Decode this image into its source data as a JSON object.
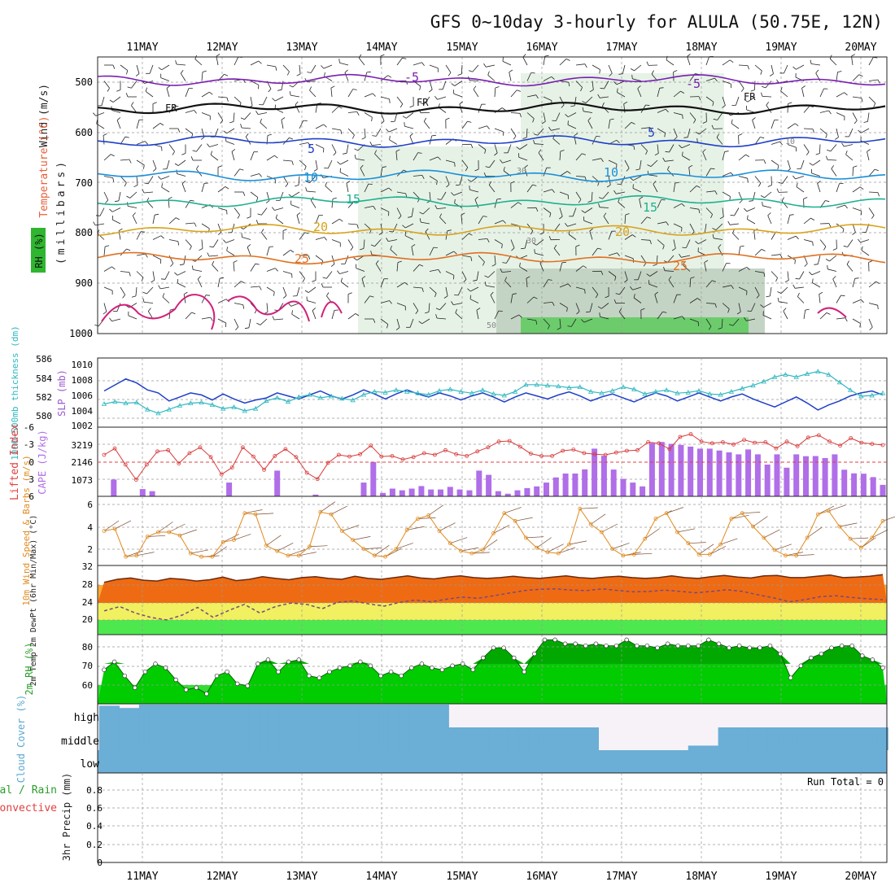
{
  "title": "GFS 0~10day 3-hourly for ALULA (50.75E, 12N)",
  "date_labels": [
    "11MAY",
    "12MAY",
    "13MAY",
    "14MAY",
    "15MAY",
    "16MAY",
    "17MAY",
    "18MAY",
    "19MAY",
    "20MAY"
  ],
  "colors": {
    "temp_label": "#e8603c",
    "wind_label": "#222222",
    "rh_label": "#2a9d2a",
    "mb_label": "#222222",
    "thickness_label": "#30b8c0",
    "slp_label": "#9b59d0",
    "li_label": "#e04040",
    "cape_label": "#b06ee8",
    "wind10_label": "#e08a1e",
    "cloud_label": "#5aa8d0",
    "precip_total": "#2a9d2a",
    "precip_conv": "#e04040",
    "blue_line": "#1f3fc8",
    "cyan_line": "#30b8c0",
    "cape_bar": "#b06ee8",
    "li_line": "#d83a3a",
    "orange_line": "#e08a1e",
    "rh_fill": "#22cc22",
    "cloud_fill": "#6baed6"
  },
  "panels": {
    "upper_air": {
      "ylabel_wind": "Wind (m/s)",
      "ylabel_temp": "Temperature (°C)",
      "ylabel_mb": "(millibars)",
      "ylabel_rh": "RH (%)",
      "y_ticks": [
        "500",
        "600",
        "700",
        "800",
        "900",
        "1000"
      ],
      "isotherm_labels": [
        "-5",
        "FR",
        "5",
        "10",
        "15",
        "20",
        "25"
      ],
      "rh_labels": [
        "30",
        "50",
        "10"
      ]
    },
    "slp": {
      "ylabel_left": "1000~500mb thickness (dm)",
      "ylabel_right": "SLP (mb)",
      "left_ticks": [
        "586",
        "584",
        "582",
        "580"
      ],
      "right_ticks": [
        "1010",
        "1008",
        "1006",
        "1004",
        "1002"
      ]
    },
    "cape": {
      "ylabel_left": "Lifted Index",
      "ylabel_right": "CAPE (J/kg)",
      "left_ticks": [
        "-6",
        "-3",
        "0",
        "3",
        "6"
      ],
      "right_ticks": [
        "3219",
        "2146",
        "1073"
      ]
    },
    "wind10": {
      "ylabel": "10m Wind Speed & Barbs (m/s)",
      "ticks": [
        "6",
        "4",
        "2"
      ]
    },
    "temp2m": {
      "ylabel": "2m Temp 2m DewPt (6hr Min/Max) (°C)",
      "ticks": [
        "32",
        "28",
        "24",
        "20"
      ]
    },
    "rh2m": {
      "ylabel": "2m RH (%)",
      "ticks": [
        "80",
        "70",
        "60"
      ]
    },
    "cloud": {
      "ylabel": "Cloud Cover (%)",
      "labels": [
        "high",
        "middle",
        "low"
      ]
    },
    "precip": {
      "ylabel": "3hr Precip (mm)",
      "legend_total": "Total / Rain",
      "legend_conv": "Convective",
      "run_total": "Run Total = 0",
      "ticks": [
        "0.8",
        "0.6",
        "0.4",
        "0.2",
        "0"
      ]
    }
  },
  "chart_data": {
    "type": "line",
    "x_days": [
      "11MAY",
      "12MAY",
      "13MAY",
      "14MAY",
      "15MAY",
      "16MAY",
      "17MAY",
      "18MAY",
      "19MAY",
      "20MAY"
    ],
    "isotherm_levels_mb": {
      "-5": 496,
      "FR": 552,
      "5": 618,
      "10": 686,
      "15": 737,
      "20": 794,
      "25": 850
    },
    "thickness_dm": [
      582.8,
      583.4,
      584.0,
      583.6,
      582.9,
      582.6,
      581.8,
      582.2,
      582.6,
      582.4,
      581.9,
      582.5,
      582.0,
      581.6,
      581.9,
      582.1,
      582.6,
      582.3,
      582.0,
      582.4,
      582.8,
      582.3,
      582.0,
      582.4,
      582.9,
      582.5,
      582.0,
      582.5,
      582.9,
      582.5,
      582.2,
      582.6,
      582.3,
      581.9,
      582.3,
      582.6,
      582.2,
      581.7,
      582.2,
      582.6,
      582.3,
      582.0,
      582.4,
      582.7,
      582.3,
      581.8,
      582.2,
      582.5,
      582.1,
      581.7,
      582.2,
      582.6,
      582.3,
      581.8,
      582.2,
      582.6,
      582.2,
      581.8,
      582.2,
      582.5,
      582.0,
      581.6,
      581.2,
      581.7,
      582.2,
      581.6,
      580.9,
      581.4,
      581.8,
      582.3,
      582.6,
      582.8,
      582.4
    ],
    "slp_mb": [
      1005.0,
      1005.3,
      1005.1,
      1005.2,
      1004.3,
      1003.8,
      1004.3,
      1004.8,
      1005.1,
      1005.2,
      1004.9,
      1004.4,
      1004.6,
      1004.1,
      1004.4,
      1005.4,
      1005.8,
      1005.3,
      1005.9,
      1006.2,
      1005.8,
      1006.0,
      1005.7,
      1005.5,
      1006.2,
      1006.6,
      1006.5,
      1006.8,
      1006.6,
      1006.4,
      1006.2,
      1006.7,
      1006.9,
      1006.6,
      1006.4,
      1006.8,
      1006.3,
      1006.1,
      1006.6,
      1007.5,
      1007.5,
      1007.4,
      1007.3,
      1007.1,
      1007.2,
      1006.6,
      1006.4,
      1006.7,
      1007.2,
      1006.9,
      1006.3,
      1006.6,
      1006.8,
      1006.4,
      1006.5,
      1006.7,
      1006.3,
      1006.2,
      1006.6,
      1007.0,
      1007.4,
      1007.9,
      1008.5,
      1008.8,
      1008.5,
      1008.9,
      1009.2,
      1008.8,
      1007.8,
      1006.8,
      1006.0,
      1006.1,
      1006.4
    ],
    "cape_jkg": [
      0,
      980,
      0,
      0,
      420,
      300,
      0,
      0,
      0,
      0,
      0,
      0,
      0,
      800,
      0,
      0,
      0,
      0,
      1500,
      0,
      0,
      0,
      100,
      0,
      0,
      0,
      0,
      800,
      2000,
      200,
      450,
      350,
      450,
      600,
      400,
      400,
      550,
      400,
      350,
      1500,
      1250,
      300,
      150,
      350,
      480,
      580,
      800,
      1100,
      1330,
      1330,
      1570,
      2780,
      2360,
      1560,
      1020,
      800,
      580,
      3100,
      3170,
      3060,
      3000,
      2900,
      2780,
      2780,
      2670,
      2560,
      2450,
      2730,
      2450,
      1850,
      2450,
      1670,
      2450,
      2340,
      2350,
      2230,
      2450,
      1550,
      1340,
      1320,
      1120,
      670
    ],
    "lifted_index": [
      -1.2,
      -2.3,
      0.5,
      3.1,
      0.5,
      -1.8,
      -2.0,
      0.3,
      -1.5,
      -2.5,
      -0.8,
      2.2,
      1.0,
      -2.5,
      -0.9,
      1.4,
      -1.0,
      -2.2,
      -0.8,
      1.9,
      3.0,
      0.2,
      -1.2,
      -0.9,
      -1.3,
      -2.8,
      -0.9,
      -1.0,
      -0.4,
      -0.8,
      -1.5,
      -1.2,
      -2.0,
      -1.3,
      -1.0,
      -1.8,
      -2.5,
      -3.5,
      -3.6,
      -2.6,
      -1.4,
      -1.0,
      -1.0,
      -1.9,
      -2.1,
      -1.5,
      -1.3,
      -1.2,
      -1.6,
      -1.9,
      -2.0,
      -3.4,
      -3.2,
      -2.2,
      -4.3,
      -4.8,
      -3.5,
      -3.2,
      -3.4,
      -3.0,
      -3.8,
      -3.3,
      -3.4,
      -2.3,
      -3.5,
      -2.7,
      -4.2,
      -4.6,
      -3.5,
      -2.8,
      -4.1,
      -3.3,
      -3.1,
      -2.9
    ],
    "wind10m_ms": [
      3.6,
      3.8,
      1.3,
      1.4,
      3.1,
      3.5,
      3.5,
      3.2,
      1.6,
      1.3,
      1.3,
      2.6,
      2.8,
      5.2,
      5.1,
      2.3,
      1.8,
      1.4,
      1.4,
      2.2,
      5.3,
      5.1,
      3.6,
      2.8,
      2.0,
      1.4,
      1.3,
      2.0,
      3.7,
      4.7,
      5.0,
      3.6,
      2.5,
      1.8,
      1.6,
      1.9,
      3.4,
      5.2,
      4.5,
      3.0,
      2.1,
      1.7,
      1.6,
      2.4,
      5.6,
      4.2,
      3.5,
      2.0,
      1.4,
      1.5,
      2.9,
      4.7,
      5.2,
      3.5,
      2.5,
      1.5,
      1.5,
      2.4,
      4.7,
      5.2,
      4.0,
      3.0,
      1.9,
      1.4,
      1.4,
      3.0,
      5.1,
      5.4,
      4.0,
      2.9,
      2.1,
      3.0,
      4.5
    ],
    "temp2m_c": [
      28.1,
      28.8,
      29.1,
      28.6,
      28.4,
      29.0,
      28.8,
      28.4,
      28.7,
      29.3,
      28.5,
      28.8,
      29.4,
      29.0,
      28.7,
      29.2,
      29.4,
      29.0,
      28.8,
      29.5,
      29.0,
      28.8,
      29.2,
      29.6,
      29.1,
      28.9,
      29.3,
      29.6,
      29.2,
      29.0,
      29.2,
      29.5,
      29.2,
      29.0,
      29.3,
      29.6,
      29.2,
      29.0,
      29.3,
      29.5,
      29.2,
      29.0,
      29.2,
      29.6,
      29.2,
      29.0,
      29.4,
      29.7,
      29.3,
      29.1,
      29.6,
      29.7,
      29.2,
      29.2,
      29.5,
      29.8,
      29.2,
      29.3,
      29.5,
      29.9
    ],
    "dewpt2m_c": [
      21.5,
      22.5,
      21.0,
      20.0,
      19.4,
      20.5,
      22.3,
      20.0,
      21.6,
      23.0,
      21.0,
      22.5,
      23.3,
      23.0,
      22.0,
      23.5,
      23.8,
      23.1,
      22.6,
      23.5,
      24.0,
      23.6,
      24.2,
      24.7,
      24.4,
      25.0,
      25.6,
      26.2,
      26.5,
      26.6,
      26.3,
      26.2,
      26.6,
      26.2,
      25.9,
      26.0,
      26.3,
      26.0,
      25.7,
      26.0,
      26.4,
      26.0,
      25.2,
      24.5,
      23.6,
      24.1,
      24.8,
      25.0,
      24.6,
      24.3,
      24.1
    ],
    "rh2m_pct": [
      67,
      71,
      64,
      58,
      66,
      70,
      68,
      62,
      57,
      58,
      55,
      64,
      66,
      60,
      59,
      70,
      72,
      66,
      71,
      72,
      64,
      63,
      66,
      68,
      69,
      71,
      69,
      64,
      66,
      64,
      68,
      70,
      68,
      67,
      69,
      70,
      67,
      73,
      78,
      78,
      73,
      66,
      75,
      82,
      82,
      80,
      80,
      79,
      80,
      79,
      79,
      82,
      79,
      79,
      78,
      80,
      79,
      79,
      79,
      82,
      80,
      78,
      79,
      78,
      78,
      79,
      75,
      63,
      69,
      73,
      75,
      78,
      79,
      79,
      74,
      72,
      68
    ],
    "cloud_high_pct": [
      95,
      95,
      85,
      85,
      100,
      100,
      100,
      100,
      100,
      100,
      100,
      100,
      100,
      100,
      100,
      100,
      100,
      100,
      100,
      100,
      100,
      100,
      100,
      100,
      100,
      100,
      100,
      100,
      100,
      100,
      100,
      100,
      100,
      100,
      100,
      0,
      0,
      0,
      0,
      0,
      0,
      0,
      0,
      0,
      0,
      0,
      0,
      0,
      0,
      0,
      0,
      0,
      0,
      0,
      0,
      0,
      0,
      0,
      0,
      0,
      0,
      0,
      0,
      0,
      0,
      0,
      0,
      0,
      0,
      0,
      0,
      0,
      0,
      0,
      0,
      0,
      0,
      0,
      0
    ],
    "cloud_mid_pct": [
      100,
      100,
      100,
      100,
      100,
      100,
      100,
      100,
      100,
      100,
      100,
      100,
      100,
      100,
      100,
      100,
      100,
      100,
      100,
      100,
      100,
      100,
      100,
      100,
      100,
      100,
      100,
      100,
      100,
      100,
      100,
      100,
      100,
      100,
      100,
      100,
      100,
      100,
      100,
      100,
      100,
      100,
      100,
      100,
      100,
      100,
      100,
      100,
      100,
      100,
      0,
      0,
      0,
      0,
      0,
      0,
      0,
      0,
      0,
      20,
      20,
      20,
      100,
      100,
      100,
      100,
      100,
      100,
      100,
      100,
      100,
      100,
      100,
      100,
      100,
      100,
      100,
      100,
      100
    ],
    "precip_3hr_mm": [
      0,
      0,
      0,
      0,
      0,
      0,
      0,
      0,
      0,
      0
    ]
  }
}
